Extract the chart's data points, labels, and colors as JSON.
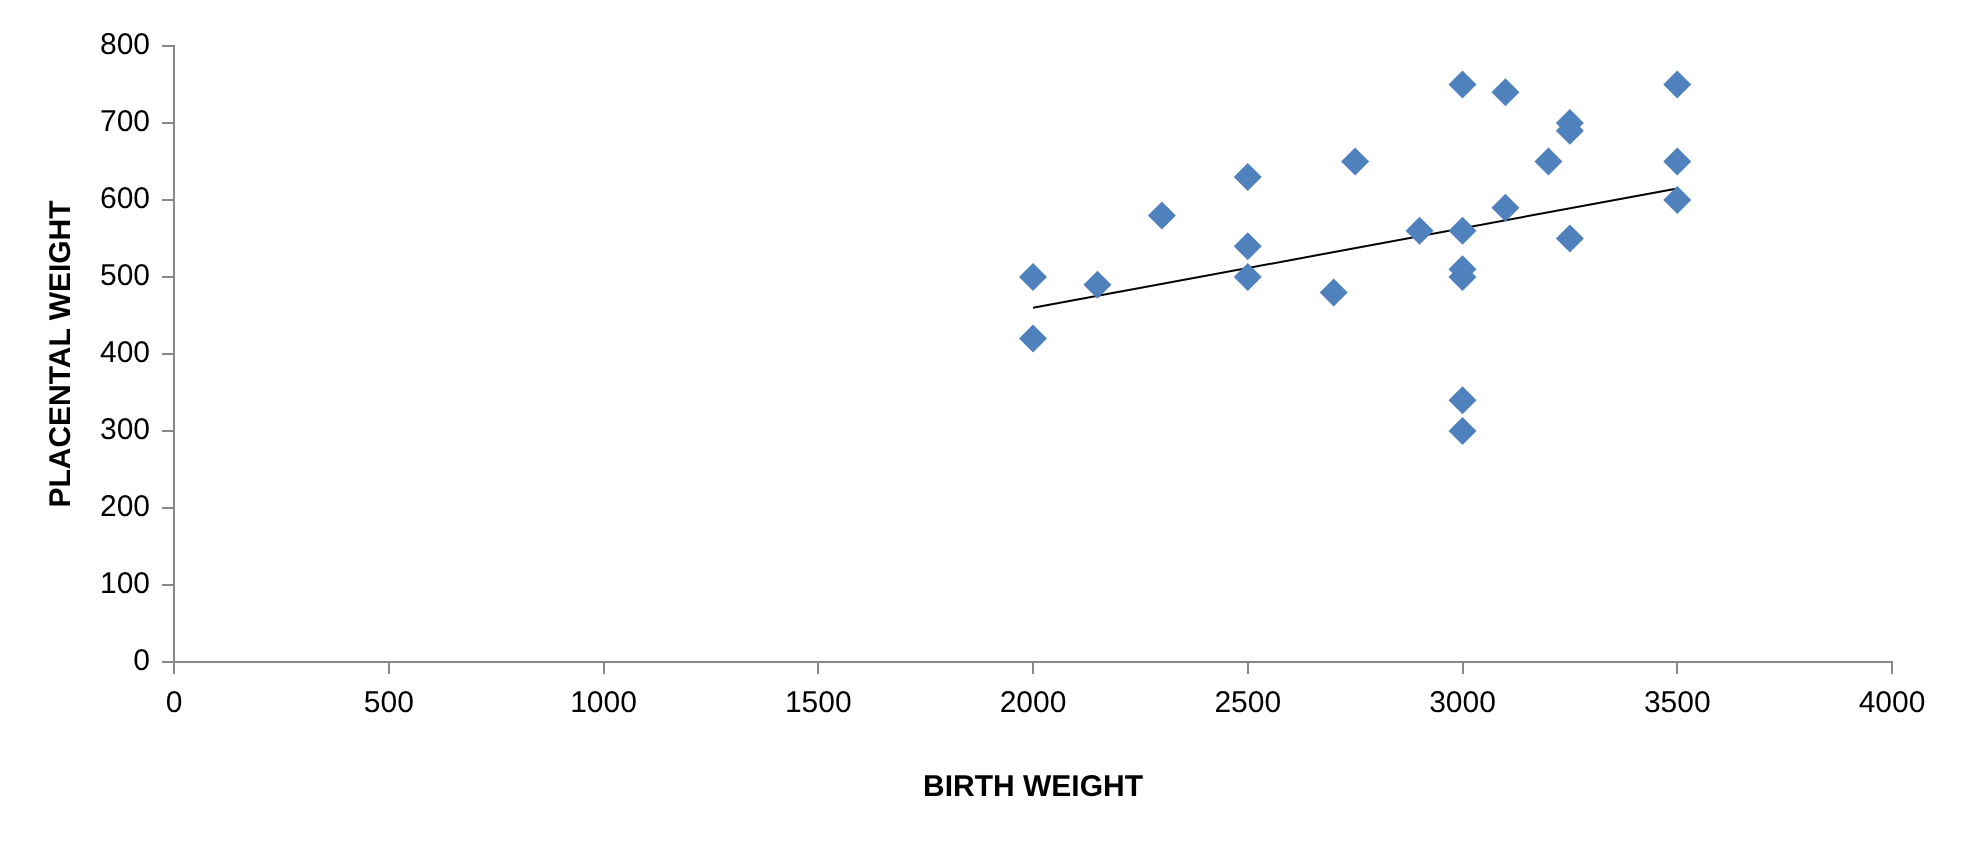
{
  "chart_data": {
    "type": "scatter",
    "xlabel": "BIRTH WEIGHT",
    "ylabel": "PLACENTAL WEIGHT",
    "marker": "diamond",
    "grid": false,
    "legend": false,
    "xlim": [
      0,
      4000
    ],
    "xticks": [
      0,
      500,
      1000,
      1500,
      2000,
      2500,
      3000,
      3500,
      4000
    ],
    "ylim": [
      0,
      800
    ],
    "yticks": [
      0,
      100,
      200,
      300,
      400,
      500,
      600,
      700,
      800
    ],
    "series": [
      {
        "color": "#4f81bd",
        "x": [
          2000,
          2000,
          2150,
          2300,
          2500,
          2500,
          2500,
          2700,
          2750,
          2900,
          3000,
          3000,
          3000,
          3000,
          3000,
          3000,
          3100,
          3100,
          3200,
          3250,
          3250,
          3250,
          3500,
          3500,
          3500
        ],
        "values": [
          500,
          420,
          490,
          580,
          630,
          540,
          500,
          480,
          650,
          560,
          750,
          560,
          510,
          500,
          340,
          300,
          740,
          590,
          650,
          700,
          690,
          550,
          750,
          650,
          600
        ]
      },
      {
        "type": "line",
        "color": "#000000",
        "marker": "none",
        "x": [
          2000,
          3500
        ],
        "values": [
          460,
          615
        ]
      }
    ]
  }
}
